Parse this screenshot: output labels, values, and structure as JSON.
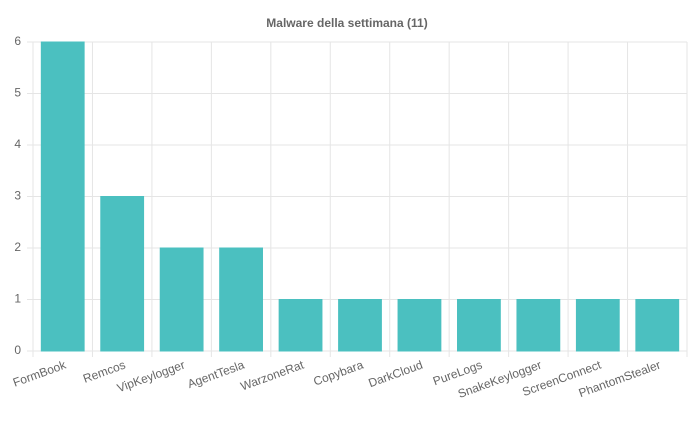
{
  "chart_data": {
    "type": "bar",
    "title": "Malware della settimana (11)",
    "categories": [
      "FormBook",
      "Remcos",
      "VipKeylogger",
      "AgentTesla",
      "WarzoneRat",
      "Copybara",
      "DarkCloud",
      "PureLogs",
      "SnakeKeylogger",
      "ScreenConnect",
      "PhantomStealer"
    ],
    "values": [
      6,
      3,
      2,
      2,
      1,
      1,
      1,
      1,
      1,
      1,
      1
    ],
    "color": "#4bc0c0",
    "ylim": [
      0,
      6
    ],
    "yticks": [
      0,
      1,
      2,
      3,
      4,
      5,
      6
    ],
    "grid": true
  }
}
